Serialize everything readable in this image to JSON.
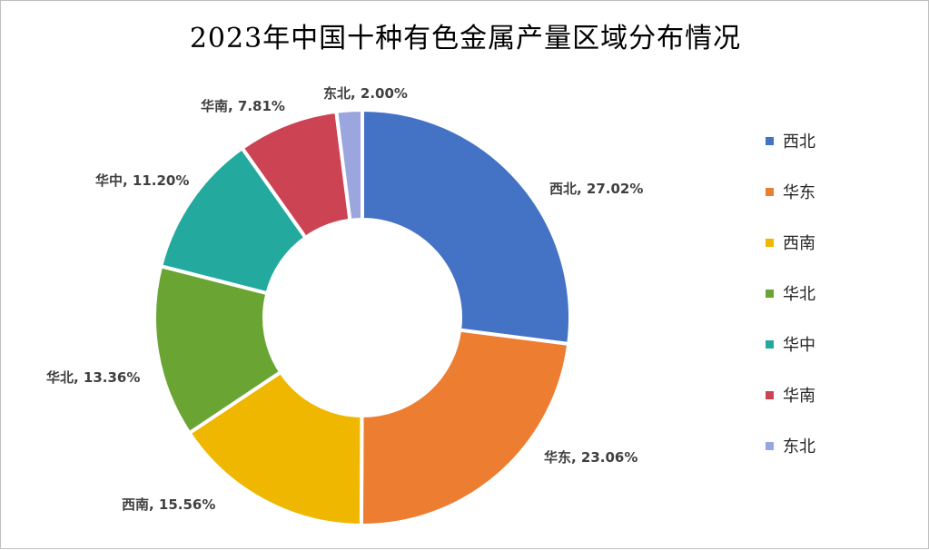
{
  "chart_data": {
    "type": "pie",
    "title": "2023年中国十种有色金属产量区域分布情况",
    "categories": [
      "西北",
      "华东",
      "西南",
      "华北",
      "华中",
      "华南",
      "东北"
    ],
    "values": [
      27.02,
      23.06,
      15.56,
      13.36,
      11.2,
      7.81,
      2.0
    ],
    "data_labels": [
      "西北, 27.02%",
      "华东, 23.06%",
      "西南, 15.56%",
      "华北, 13.36%",
      "华中, 11.20%",
      "华南, 7.81%",
      "东北, 2.00%"
    ],
    "colors": [
      "#4472c4",
      "#ed7d31",
      "#f0b700",
      "#6aa534",
      "#24a99e",
      "#cc4454",
      "#9aa6dd"
    ],
    "donut": true,
    "legend_position": "right"
  }
}
